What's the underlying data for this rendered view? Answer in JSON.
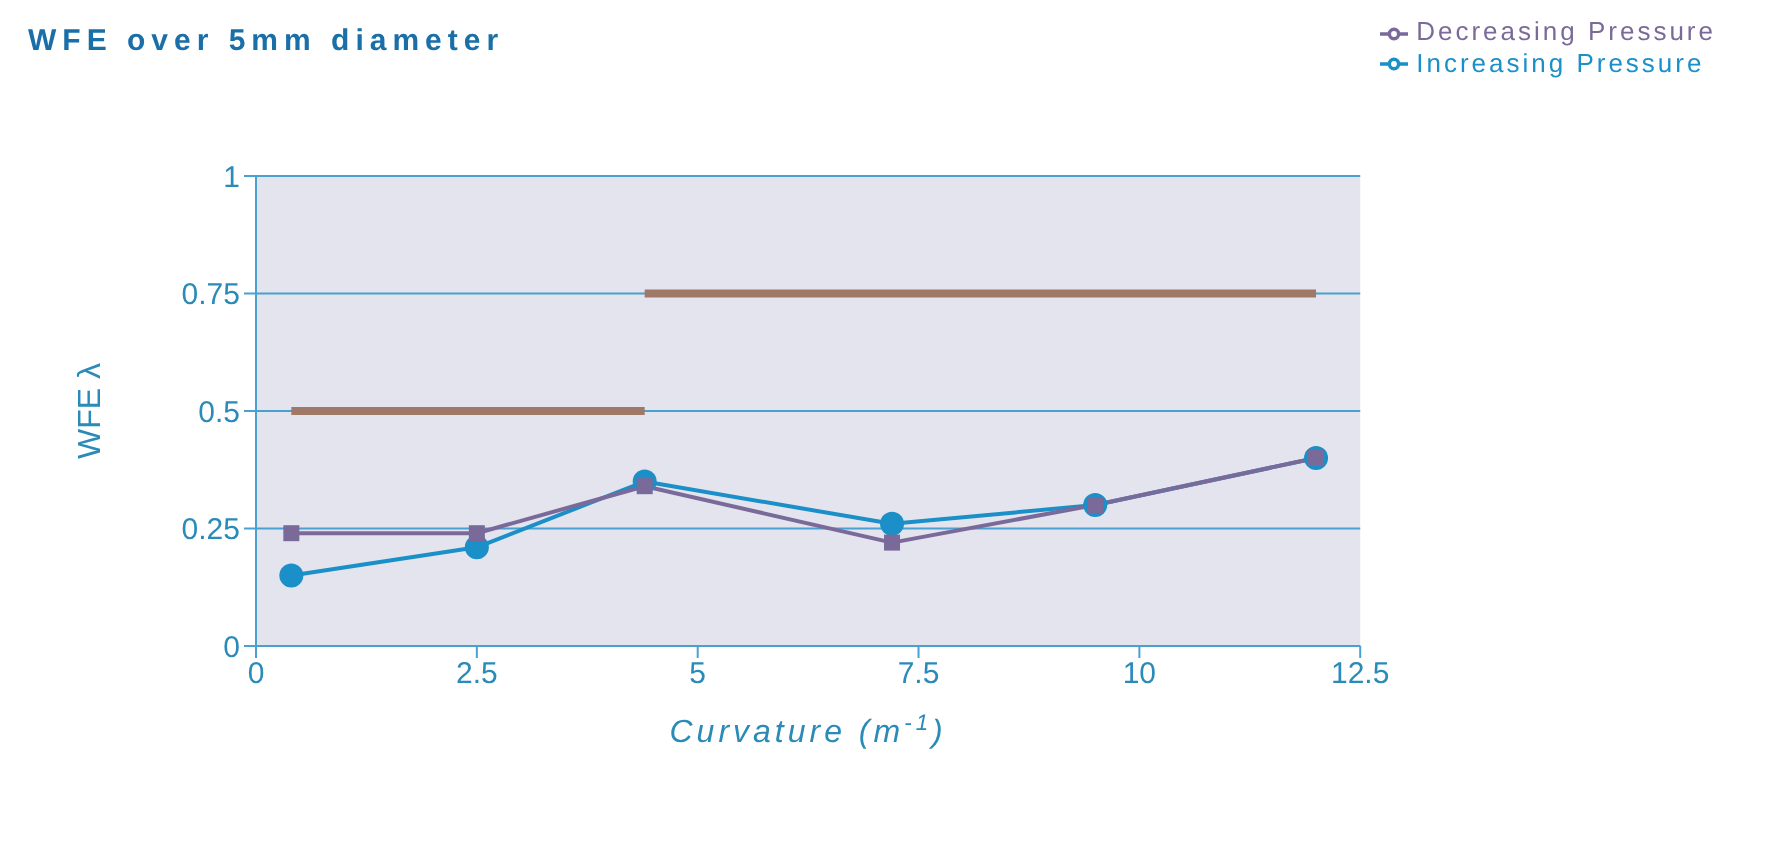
{
  "chart_data": {
    "type": "line",
    "title": "WFE over 5mm diameter",
    "xlabel": "Curvature (m$^{-1}$)",
    "ylabel": "WFE λ",
    "xlim": [
      0,
      12.5
    ],
    "xticks": [
      0,
      2.5,
      5,
      7.5,
      10,
      12.5
    ],
    "ylim": [
      0,
      1
    ],
    "yticks": [
      0,
      0.25,
      0.5,
      0.75,
      1
    ],
    "grid": "y",
    "legend": "top right",
    "series": [
      {
        "name": "Increasing Pressure",
        "color": "#1a8fc8",
        "x": [
          0.4,
          2.5,
          4.4,
          7.2,
          9.5,
          12
        ],
        "values": [
          0.15,
          0.21,
          0.35,
          0.26,
          0.3,
          0.4
        ],
        "marker": "circle"
      },
      {
        "name": "Decreasing Pressure",
        "color": "#7a6a9a",
        "x": [
          0.4,
          2.5,
          4.4,
          7.2,
          9.5,
          12
        ],
        "values": [
          0.24,
          0.24,
          0.34,
          0.22,
          0.3,
          0.4
        ],
        "marker": "square"
      },
      {
        "color": "#a07868",
        "x": [
          0.4,
          4.4
        ],
        "values": [
          0.5,
          0.5
        ],
        "marker": "none"
      },
      {
        "color": "#a07868",
        "x": [
          4.4,
          12
        ],
        "values": [
          0.75,
          0.75
        ],
        "marker": "none"
      }
    ]
  }
}
